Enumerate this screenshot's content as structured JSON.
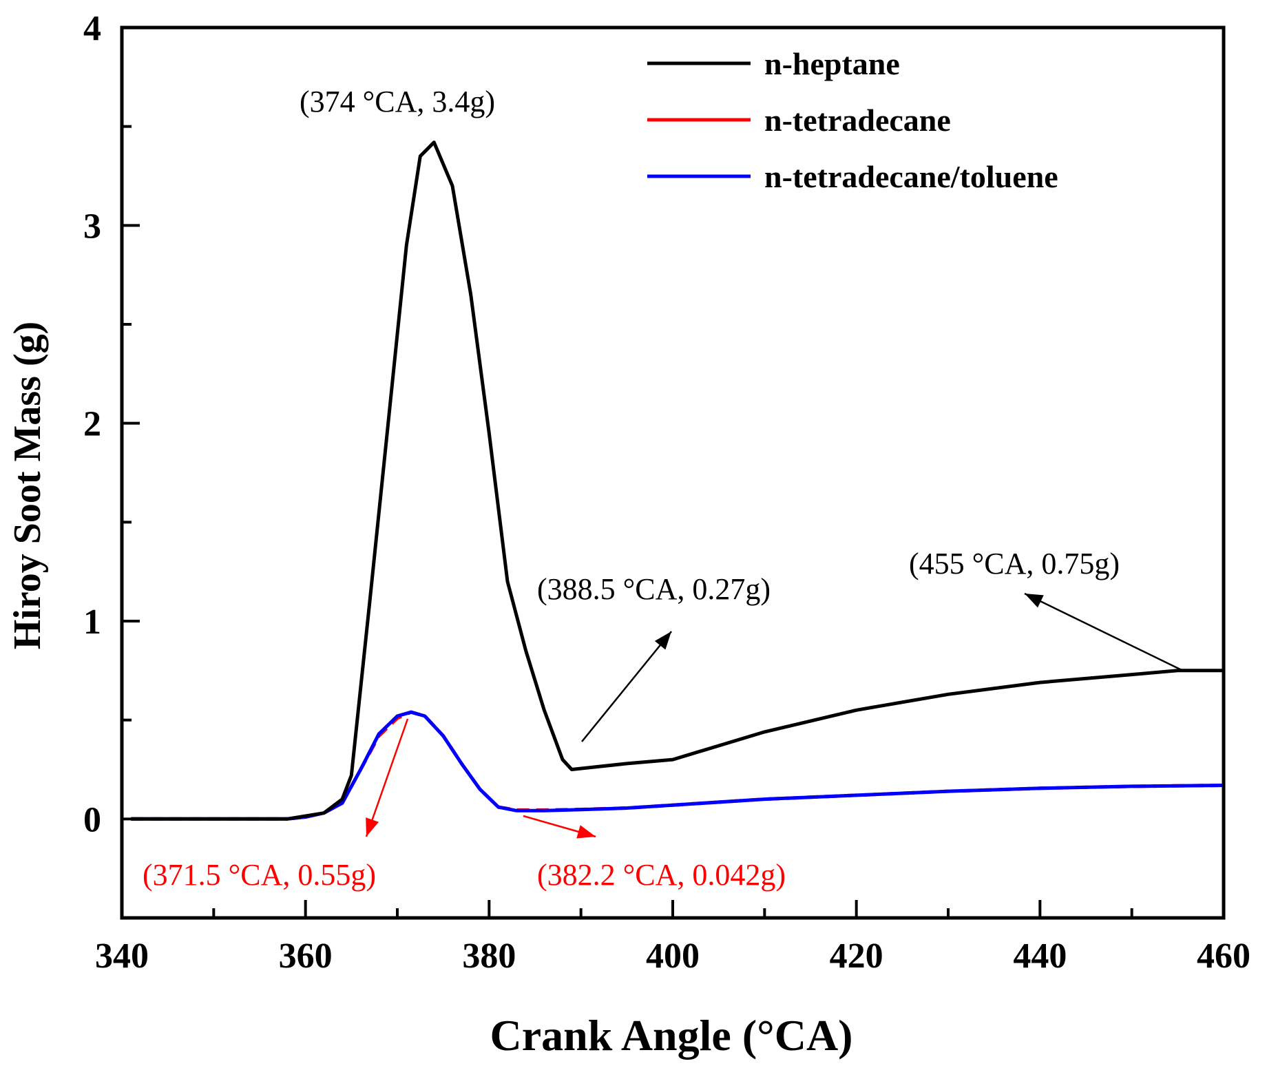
{
  "chart_data": {
    "type": "line",
    "xlabel": "Crank Angle (°CA)",
    "ylabel": "Hiroy Soot Mass (g)",
    "xlim": [
      340,
      460
    ],
    "ylim": [
      -0.5,
      4
    ],
    "xticks": [
      340,
      360,
      380,
      400,
      420,
      440,
      460
    ],
    "yticks": [
      0,
      1,
      2,
      3,
      4
    ],
    "legend_position": "top-right",
    "series": [
      {
        "name": "n-heptane",
        "color": "#000000",
        "x": [
          341,
          358,
          362,
          364,
          365,
          367,
          369,
          371,
          372.5,
          374,
          376,
          378,
          380,
          382,
          384,
          386,
          388,
          389,
          391,
          395,
          400,
          405,
          410,
          420,
          430,
          440,
          450,
          455,
          460
        ],
        "y": [
          0,
          0,
          0.03,
          0.1,
          0.22,
          1.1,
          2.0,
          2.9,
          3.35,
          3.42,
          3.2,
          2.65,
          1.95,
          1.2,
          0.85,
          0.55,
          0.3,
          0.25,
          0.26,
          0.28,
          0.3,
          0.37,
          0.44,
          0.55,
          0.63,
          0.69,
          0.73,
          0.75,
          0.75
        ]
      },
      {
        "name": "n-tetradecane",
        "color": "#ff0000",
        "x": [
          341,
          358,
          360,
          362,
          364,
          366,
          368,
          370,
          371.5,
          373,
          375,
          377,
          379,
          381,
          383,
          386,
          390,
          395,
          400,
          410,
          420,
          430,
          440,
          450,
          460
        ],
        "y": [
          0,
          0,
          0.01,
          0.03,
          0.08,
          0.25,
          0.42,
          0.51,
          0.54,
          0.52,
          0.42,
          0.28,
          0.15,
          0.06,
          0.045,
          0.045,
          0.048,
          0.055,
          0.07,
          0.1,
          0.12,
          0.14,
          0.155,
          0.165,
          0.17
        ]
      },
      {
        "name": "n-tetradecane/toluene",
        "color": "#0000ff",
        "x": [
          341,
          358,
          360,
          362,
          364,
          366,
          368,
          370,
          371.5,
          373,
          375,
          377,
          379,
          381,
          383,
          386,
          390,
          395,
          400,
          410,
          420,
          430,
          440,
          450,
          460
        ],
        "y": [
          0,
          0,
          0.01,
          0.03,
          0.08,
          0.25,
          0.43,
          0.52,
          0.54,
          0.52,
          0.42,
          0.28,
          0.15,
          0.06,
          0.042,
          0.042,
          0.047,
          0.055,
          0.07,
          0.1,
          0.12,
          0.14,
          0.155,
          0.165,
          0.17
        ]
      }
    ],
    "annotations": [
      {
        "text": "(374 °CA, 3.4g)",
        "color": "#000000"
      },
      {
        "text": "(388.5 °CA, 0.27g)",
        "color": "#000000"
      },
      {
        "text": "(455 °CA, 0.75g)",
        "color": "#000000"
      },
      {
        "text": "(371.5 °CA, 0.55g)",
        "color": "#ff0000"
      },
      {
        "text": "(382.2 °CA, 0.042g)",
        "color": "#ff0000"
      }
    ]
  }
}
